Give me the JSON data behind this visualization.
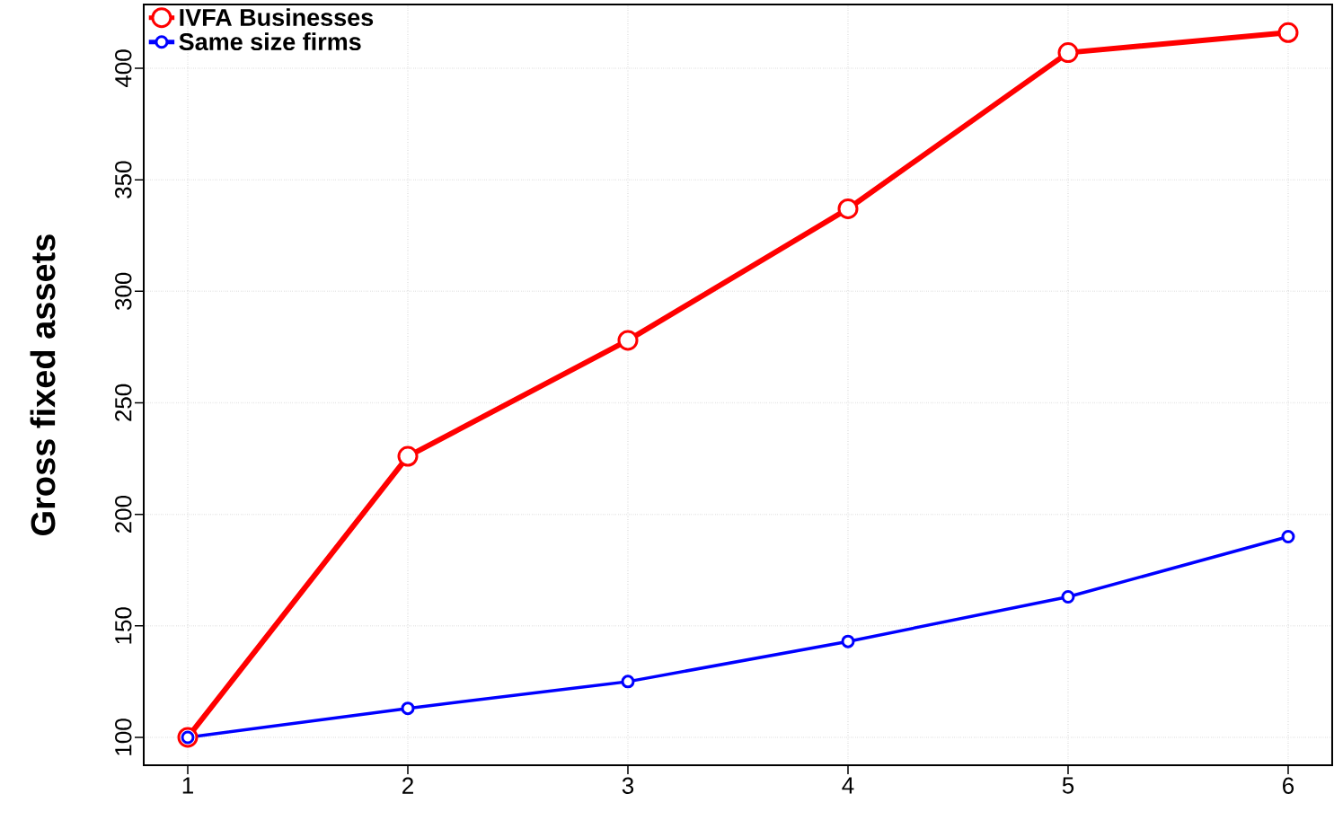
{
  "chart_data": {
    "type": "line",
    "ylabel": "Gross fixed assets",
    "x": [
      1,
      2,
      3,
      4,
      5,
      6
    ],
    "series": [
      {
        "name": "IVFA Businesses",
        "color": "#ff0000",
        "values": [
          100,
          226,
          278,
          337,
          407,
          416
        ]
      },
      {
        "name": "Same size firms",
        "color": "#0000ff",
        "values": [
          100,
          113,
          125,
          143,
          163,
          190
        ]
      }
    ],
    "xlim": [
      0.8,
      6.2
    ],
    "ylim": [
      87.5,
      428.6
    ],
    "xticks": [
      1,
      2,
      3,
      4,
      5,
      6
    ],
    "yticks": [
      100,
      150,
      200,
      250,
      300,
      350,
      400
    ],
    "grid": true,
    "legend": "top left",
    "marker": "circle",
    "line_style": "solid"
  }
}
